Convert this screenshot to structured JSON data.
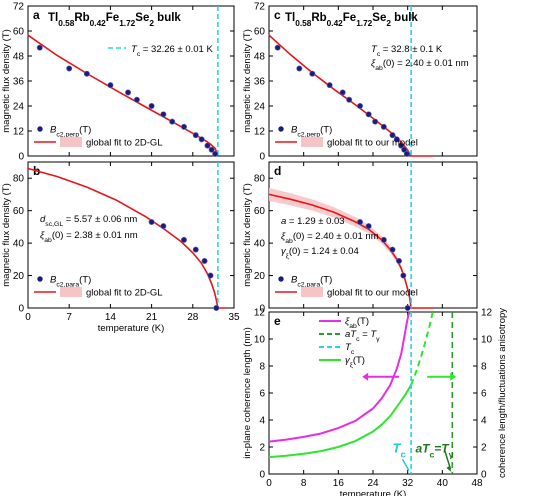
{
  "colors": {
    "fit": "#e8141b",
    "band": "#f7c4c6",
    "points": "#1c1c7a",
    "tc_line": "#22d7e6",
    "xi": "#e62ee6",
    "gamma": "#2ee62e",
    "gamma_dashed": "#2a9a2a",
    "tc_text": "#22c7e6",
    "atc_text": "#1a7a1a"
  },
  "chart_data": [
    {
      "panel": "a",
      "type": "scatter",
      "title_parts": [
        "Tl",
        "0.58",
        "Rb",
        "0.42",
        "Fe",
        "1.72",
        "Se",
        "2",
        " bulk"
      ],
      "ylabel": "magnetic flux density (T)",
      "xlim": [
        0,
        35
      ],
      "ylim": [
        0,
        72
      ],
      "yticks": [
        0,
        12,
        24,
        36,
        48,
        60,
        72
      ],
      "xticks": [
        0,
        7,
        14,
        21,
        28,
        35
      ],
      "tc_line_x": 32.26,
      "annotation": {
        "prefix": "T",
        "sub": "c",
        "value": " = 32.26 ± 0.01 K"
      },
      "legend": {
        "points": {
          "main": "B",
          "sub": "c2,perp",
          "suffix": "(T)"
        },
        "fit": "global fit to 2D-GL"
      },
      "series": [
        {
          "name": "Bc2,perp(T)",
          "kind": "points",
          "x": [
            2,
            7,
            10,
            14,
            17,
            18.5,
            21,
            23,
            24.5,
            26.5,
            28.5,
            29.5,
            30.5,
            31.2,
            31.8
          ],
          "y": [
            52,
            42,
            39.5,
            34,
            30.5,
            27,
            24,
            20,
            16.5,
            14,
            10,
            8,
            5,
            3,
            1
          ]
        },
        {
          "name": "global fit to 2D-GL",
          "kind": "line",
          "x": [
            0,
            5,
            10,
            15,
            20,
            25,
            28,
            30,
            31,
            31.8,
            32.26
          ],
          "y": [
            58,
            48.2,
            39.6,
            31.4,
            23.5,
            15.7,
            10.9,
            7.6,
            5.7,
            3.6,
            0
          ]
        }
      ]
    },
    {
      "panel": "b",
      "type": "scatter",
      "ylabel": "magnetic flux density (T)",
      "xlabel": "temperature (K)",
      "xlim": [
        0,
        35
      ],
      "ylim": [
        0,
        90
      ],
      "yticks": [
        0,
        20,
        40,
        60,
        80
      ],
      "xticks": [
        0,
        7,
        14,
        21,
        28,
        35
      ],
      "tick_labels": [
        "0",
        "7",
        "14",
        "21",
        "28",
        "35"
      ],
      "tc_line_x": 32.26,
      "annotation_lines": [
        {
          "prefix": "d",
          "sub": "sc,GL",
          "value": " = 5.57 ± 0.06 nm"
        },
        {
          "prefix": "ξ",
          "sub": "ab",
          "value": "(0) = 2.38 ± 0.01 nm"
        }
      ],
      "legend": {
        "points": {
          "main": "B",
          "sub": "c2,para",
          "suffix": "(T)"
        },
        "fit": "global fit to 2D-GL"
      },
      "series": [
        {
          "name": "Bc2,para(T)",
          "kind": "points",
          "x": [
            21,
            23,
            26.5,
            28.5,
            30,
            31,
            32
          ],
          "y": [
            53,
            50.5,
            42,
            36,
            29,
            20,
            0
          ]
        },
        {
          "name": "global fit to 2D-GL",
          "kind": "line",
          "x": [
            0,
            5,
            10,
            15,
            20,
            23,
            26,
            28,
            29.5,
            30.5,
            31.2,
            31.7,
            32.0,
            32.26,
            33.5
          ],
          "y": [
            86,
            81,
            74.5,
            66.5,
            56.3,
            49,
            41,
            34,
            27.5,
            21,
            15,
            9.5,
            5,
            0,
            0
          ]
        }
      ]
    },
    {
      "panel": "c",
      "type": "scatter",
      "title_parts": [
        "Tl",
        "0.58",
        "Rb",
        "0.42",
        "Fe",
        "1.72",
        "Se",
        "2",
        " bulk"
      ],
      "ylabel": "magnetic flux density (T)",
      "xlim": [
        0,
        48
      ],
      "ylim": [
        0,
        72
      ],
      "yticks": [
        0,
        12,
        24,
        36,
        48,
        60,
        72
      ],
      "xticks": [
        0,
        8,
        16,
        24,
        32,
        40,
        48
      ],
      "tc_line_x": 32.8,
      "annotation_lines": [
        {
          "prefix": "T",
          "sub": "c",
          "value": " = 32.8 ± 0.1 K"
        },
        {
          "prefix": "ξ",
          "sub": "ab",
          "value": "(0) = 2.40 ± 0.01 nm"
        }
      ],
      "legend": {
        "points": {
          "main": "B",
          "sub": "c2,perp",
          "suffix": "(T)"
        },
        "fit": "global fit to our model"
      },
      "series": [
        {
          "name": "Bc2,perp(T)",
          "kind": "points",
          "x": [
            2,
            7,
            10,
            14,
            17,
            18.5,
            21,
            23,
            24.5,
            26.5,
            28.5,
            29.5,
            30.5,
            31.2,
            31.8
          ],
          "y": [
            52,
            42,
            39.5,
            34,
            30.5,
            27,
            24,
            20,
            16.5,
            14,
            10,
            8,
            5,
            3,
            1
          ]
        },
        {
          "name": "global fit to our model",
          "kind": "line",
          "x": [
            0,
            5,
            10,
            15,
            20,
            25,
            28,
            30,
            31,
            32,
            32.8,
            38
          ],
          "y": [
            58,
            48.6,
            40,
            32,
            24.5,
            16.5,
            11.5,
            7.8,
            5.6,
            2.8,
            0,
            0
          ]
        }
      ]
    },
    {
      "panel": "d",
      "type": "scatter",
      "ylabel": "magnetic flux density (T)",
      "xlim": [
        0,
        48
      ],
      "ylim": [
        0,
        90
      ],
      "yticks": [
        0,
        20,
        40,
        60,
        80
      ],
      "xticks": [
        0,
        8,
        16,
        24,
        32,
        40,
        48
      ],
      "tc_line_x": 32.8,
      "annotation_lines": [
        {
          "prefix": "a",
          "sub": "",
          "value": " = 1.29 ± 0.03"
        },
        {
          "prefix": "ξ",
          "sub": "ab",
          "value": "(0) = 2.40 ± 0.01 nm"
        },
        {
          "prefix": "γ",
          "sub": "ξ",
          "value": "(0) = 1.24 ± 0.04"
        }
      ],
      "legend": {
        "points": {
          "main": "B",
          "sub": "c2,para",
          "suffix": "(T)"
        },
        "fit": "global fit to our model"
      },
      "series": [
        {
          "name": "Bc2,para(T)",
          "kind": "points",
          "x": [
            21,
            23,
            26.5,
            28.5,
            30,
            31,
            32
          ],
          "y": [
            53,
            50.5,
            42,
            36,
            29,
            20,
            0
          ]
        },
        {
          "name": "global fit to our model",
          "kind": "line",
          "x": [
            0,
            5,
            10,
            15,
            20,
            23,
            26,
            28,
            29.5,
            30.5,
            31.3,
            32,
            32.5,
            32.8,
            38
          ],
          "y": [
            70,
            67,
            63.5,
            59,
            53,
            48.5,
            42,
            36,
            30,
            24.5,
            18.5,
            11.5,
            6,
            0,
            0
          ]
        }
      ]
    },
    {
      "panel": "e",
      "type": "line",
      "ylabel": "in-plane coherence length (nm)",
      "ylabel_right": "coherence length/fluctuations anisotropy",
      "xlabel": "temperature (K)",
      "xlim": [
        0,
        48
      ],
      "ylim": [
        0,
        12
      ],
      "ylim_right": [
        0,
        12
      ],
      "yticks": [
        0,
        2,
        4,
        6,
        8,
        10,
        12
      ],
      "yticks_right": [
        0,
        2,
        4,
        6,
        8,
        10,
        12
      ],
      "xticks": [
        0,
        8,
        16,
        24,
        32,
        40,
        48
      ],
      "tick_labels": [
        "0",
        "8",
        "16",
        "24",
        "32",
        "40",
        "48"
      ],
      "tc_line_x": 32.8,
      "atc_line_x": 42.3,
      "legend": [
        {
          "main": "ξ",
          "sub": "ab",
          "suffix": "(T)"
        },
        {
          "main": "aT",
          "sub": "c",
          "suffix": " = T",
          "sub2": "γ"
        },
        {
          "main": "T",
          "sub": "c",
          "suffix": ""
        },
        {
          "main": "γ",
          "sub": "ξ",
          "suffix": "(T)"
        }
      ],
      "label_tc": {
        "main": "T",
        "sub": "c"
      },
      "label_atc": {
        "main": "aT",
        "sub": "c",
        "mid": "=T",
        "sub2": "γ"
      },
      "series": [
        {
          "name": "ξab(T)",
          "kind": "line",
          "x": [
            0,
            4,
            8,
            12,
            16,
            20,
            24,
            26,
            28,
            29.5,
            30.5,
            31.2,
            31.8,
            32.2,
            32.5
          ],
          "y": [
            2.4,
            2.55,
            2.75,
            3.0,
            3.4,
            3.95,
            4.85,
            5.6,
            6.6,
            7.8,
            8.9,
            10.1,
            11.2,
            11.8,
            12
          ]
        },
        {
          "name": "γξ(T)",
          "kind": "line",
          "x": [
            0,
            4,
            8,
            12,
            16,
            20,
            24,
            26,
            28,
            30,
            31.5,
            32.8
          ],
          "y": [
            1.25,
            1.35,
            1.5,
            1.7,
            2.0,
            2.45,
            3.15,
            3.65,
            4.3,
            5.2,
            5.9,
            6.6
          ]
        },
        {
          "name": "γξ(T) dashed",
          "kind": "line",
          "x": [
            32.8,
            34,
            35,
            36,
            37,
            37.8
          ],
          "y": [
            6.6,
            7.6,
            8.6,
            9.7,
            10.9,
            12
          ]
        }
      ]
    }
  ]
}
